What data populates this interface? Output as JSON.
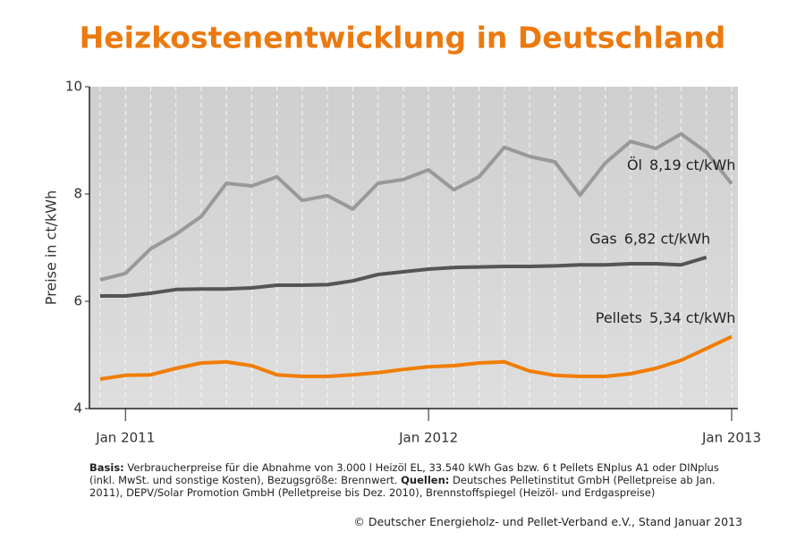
{
  "chart_data": {
    "type": "line",
    "title": "Heizkostenentwicklung in Deutschland",
    "y_label": "Preise in ct/kWh",
    "x": [
      "2010-12",
      "2011-01",
      "2011-02",
      "2011-03",
      "2011-04",
      "2011-05",
      "2011-06",
      "2011-07",
      "2011-08",
      "2011-09",
      "2011-10",
      "2011-11",
      "2011-12",
      "2012-01",
      "2012-02",
      "2012-03",
      "2012-04",
      "2012-05",
      "2012-06",
      "2012-07",
      "2012-08",
      "2012-09",
      "2012-10",
      "2012-11",
      "2012-12",
      "2013-01"
    ],
    "xlim": [
      "2010-12",
      "2013-01"
    ],
    "xticks": [
      {
        "value": "2011-01",
        "label": "Jan 2011"
      },
      {
        "value": "2012-01",
        "label": "Jan 2012"
      },
      {
        "value": "2013-01",
        "label": "Jan 2013"
      }
    ],
    "ylim": [
      4,
      10
    ],
    "yticks": [
      4,
      6,
      8,
      10
    ],
    "series": [
      {
        "name": "Öl",
        "color": "#999999",
        "values": [
          6.4,
          6.52,
          6.98,
          7.25,
          7.58,
          8.2,
          8.15,
          8.32,
          7.88,
          7.97,
          7.72,
          8.2,
          8.27,
          8.45,
          8.08,
          8.32,
          8.87,
          8.7,
          8.6,
          7.98,
          8.58,
          8.98,
          8.85,
          9.12,
          8.78,
          8.19
        ]
      },
      {
        "name": "Gas",
        "color": "#555555",
        "values": [
          6.1,
          6.1,
          6.15,
          6.22,
          6.23,
          6.23,
          6.25,
          6.3,
          6.3,
          6.31,
          6.38,
          6.5,
          6.55,
          6.6,
          6.63,
          6.64,
          6.65,
          6.65,
          6.66,
          6.68,
          6.68,
          6.7,
          6.7,
          6.68,
          6.82,
          null
        ]
      },
      {
        "name": "Pellets",
        "color": "#f07d00",
        "values": [
          4.55,
          4.62,
          4.63,
          4.75,
          4.85,
          4.87,
          4.8,
          4.63,
          4.6,
          4.6,
          4.63,
          4.67,
          4.73,
          4.78,
          4.8,
          4.85,
          4.87,
          4.7,
          4.62,
          4.6,
          4.6,
          4.65,
          4.75,
          4.9,
          5.12,
          5.34
        ]
      }
    ],
    "annotations": [
      "8,19 ct/kWh",
      "6,82 ct/kWh",
      "5,34 ct/kWh"
    ],
    "notes": {
      "basis_label": "Basis:",
      "basis_text": "Verbraucherpreise für die Abnahme von 3.000 l Heizöl EL, 33.540 kWh Gas bzw. 6 t Pellets ENplus A1 oder DINplus (inkl. MwSt. und sonstige Kosten), Bezugsgröße: Brennwert.",
      "sources_label": "Quellen:",
      "sources_text": "Deutsches Pelletinstitut GmbH (Pelletpreise ab Jan. 2011), DEPV/Solar Promotion GmbH (Pelletpreise bis Dez. 2010), Brennstoffspiegel (Heizöl- und Erdgaspreise)"
    },
    "copyright": "© Deutscher Energieholz- und Pellet-Verband e.V., Stand Januar 2013"
  }
}
